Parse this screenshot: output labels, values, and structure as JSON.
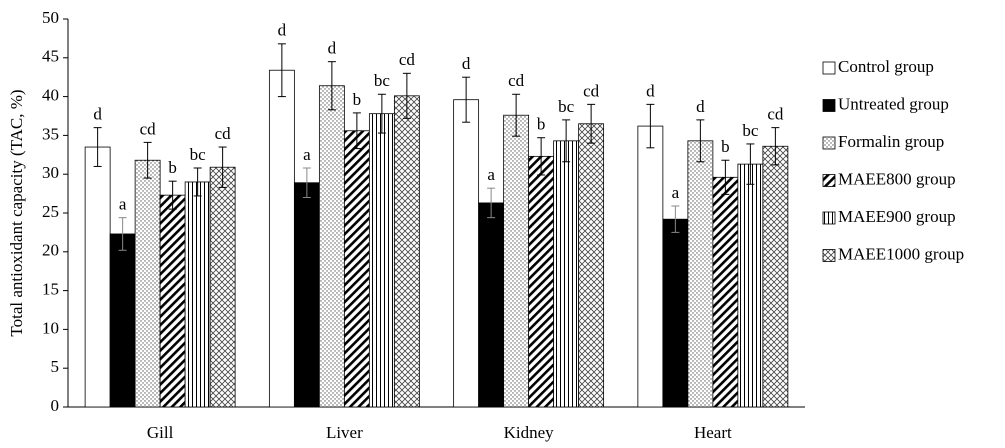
{
  "chart_data": {
    "type": "bar",
    "y_label": "Total antioxidant capacity (TAC, %)",
    "categories": [
      "Gill",
      "Liver",
      "Kidney",
      "Heart"
    ],
    "ylim": [
      0,
      50
    ],
    "yticks": [
      0,
      5,
      10,
      15,
      20,
      25,
      30,
      35,
      40,
      45,
      50
    ],
    "grid": false,
    "legend": "right",
    "series": [
      {
        "name": "Control group",
        "color": "#ffffff",
        "pattern": "none",
        "values": [
          33.5,
          43.4,
          39.6,
          36.2
        ],
        "errors": [
          2.5,
          3.4,
          2.9,
          2.8
        ],
        "letters": [
          "d",
          "d",
          "d",
          "d"
        ]
      },
      {
        "name": "Untreated group",
        "color": "#000000",
        "pattern": "solid",
        "values": [
          22.3,
          28.9,
          26.3,
          24.2
        ],
        "errors": [
          2.1,
          1.9,
          1.9,
          1.7
        ],
        "letters": [
          "a",
          "a",
          "a",
          "a"
        ]
      },
      {
        "name": "Formalin group",
        "color": "#ffffff",
        "pattern": "dots",
        "values": [
          31.8,
          41.4,
          37.6,
          34.3
        ],
        "errors": [
          2.3,
          3.1,
          2.7,
          2.7
        ],
        "letters": [
          "cd",
          "d",
          "cd",
          "d"
        ]
      },
      {
        "name": "MAEE800 group",
        "color": "#ffffff",
        "pattern": "diagonal",
        "values": [
          27.3,
          35.6,
          32.3,
          29.6
        ],
        "errors": [
          1.8,
          2.3,
          2.4,
          2.2
        ],
        "letters": [
          "b",
          "b",
          "b",
          "b"
        ]
      },
      {
        "name": "MAEE900 group",
        "color": "#ffffff",
        "pattern": "vertical",
        "values": [
          29.0,
          37.8,
          34.3,
          31.3
        ],
        "errors": [
          1.8,
          2.5,
          2.7,
          2.6
        ],
        "letters": [
          "bc",
          "bc",
          "bc",
          "bc"
        ]
      },
      {
        "name": "MAEE1000 group",
        "color": "#ffffff",
        "pattern": "cross",
        "values": [
          30.9,
          40.1,
          36.5,
          33.6
        ],
        "errors": [
          2.6,
          2.9,
          2.5,
          2.4
        ],
        "letters": [
          "cd",
          "cd",
          "cd",
          "cd"
        ]
      }
    ]
  }
}
